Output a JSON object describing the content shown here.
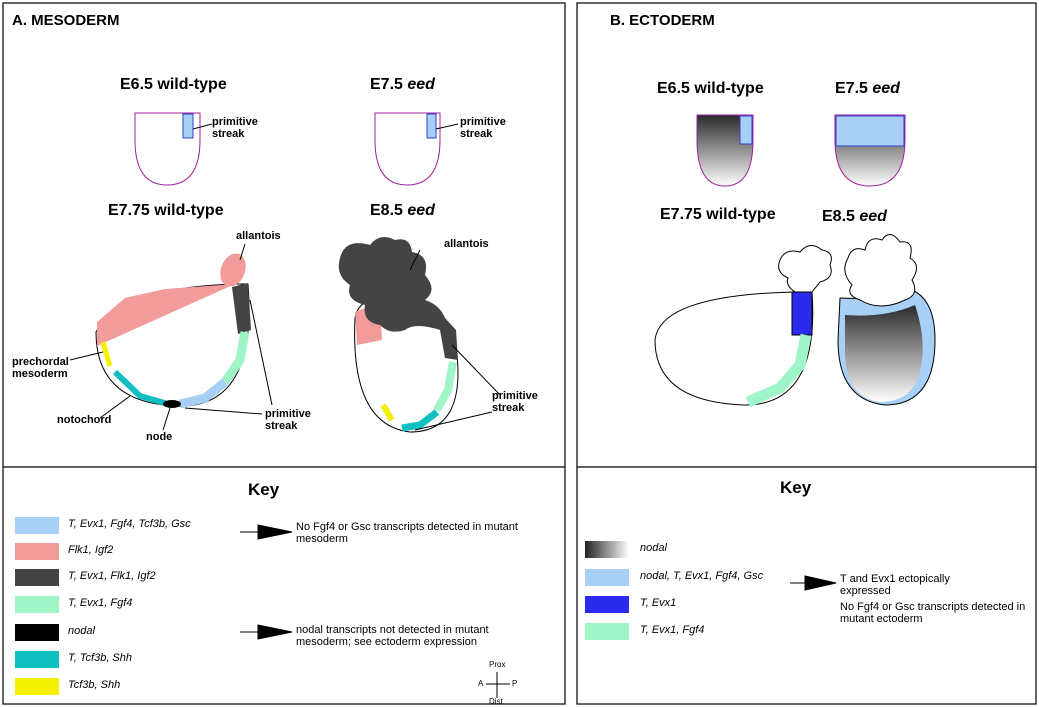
{
  "panels": [
    {
      "title": "A. MESODERM",
      "stages": [
        {
          "stage": "E6.5",
          "genotype": "wild-type"
        },
        {
          "stage": "E7.5",
          "genotype": "eed"
        },
        {
          "stage": "E7.75",
          "genotype": "wild-type"
        },
        {
          "stage": "E8.5",
          "genotype": "eed"
        }
      ],
      "annotations": [
        "primitive streak",
        "primitive streak",
        "allantois",
        "allantois",
        "prechordal mesoderm",
        "notochord",
        "node",
        "primitive streak",
        "primitive streak"
      ],
      "key": {
        "title": "Key",
        "items": [
          {
            "label": "T, Evx1, Fgf4, Tcf3b, Gsc",
            "color": "#a8cff5"
          },
          {
            "label": "Flk1, Igf2",
            "color": "#f29b9b"
          },
          {
            "label": "T, Evx1, Flk1, Igf2",
            "color": "#444444"
          },
          {
            "label": "T, Evx1, Fgf4",
            "color": "#9ff5c8"
          },
          {
            "label": "nodal",
            "color": "#000000"
          },
          {
            "label": "T, Tcf3b, Shh",
            "color": "#10c0c0"
          },
          {
            "label": "Tcf3b, Shh",
            "color": "#f5f000"
          }
        ],
        "notes": [
          "No Fgf4 or Gsc transcripts detected in mutant mesoderm",
          "nodal transcripts not detected in mutant mesoderm; see ectoderm expression"
        ]
      },
      "compass": {
        "proximal": "Prox",
        "anterior": "A",
        "posterior": "P",
        "distal": "Dist"
      }
    },
    {
      "title": "B. ECTODERM",
      "stages": [
        {
          "stage": "E6.5",
          "genotype": "wild-type"
        },
        {
          "stage": "E7.5",
          "genotype": "eed"
        },
        {
          "stage": "E7.75",
          "genotype": "wild-type"
        },
        {
          "stage": "E8.5",
          "genotype": "eed"
        }
      ],
      "key": {
        "title": "Key",
        "items": [
          {
            "label": "nodal",
            "color": "gradient"
          },
          {
            "label": "nodal, T, Evx1, Fgf4, Gsc",
            "color": "#a8cff5"
          },
          {
            "label": "T, Evx1",
            "color": "#2b2bf0"
          },
          {
            "label": "T, Evx1, Fgf4",
            "color": "#9ff5c8"
          }
        ],
        "notes": [
          "T and Evx1 ectopically expressed",
          "No Fgf4 or Gsc transcripts detected in mutant ectoderm"
        ]
      }
    }
  ]
}
